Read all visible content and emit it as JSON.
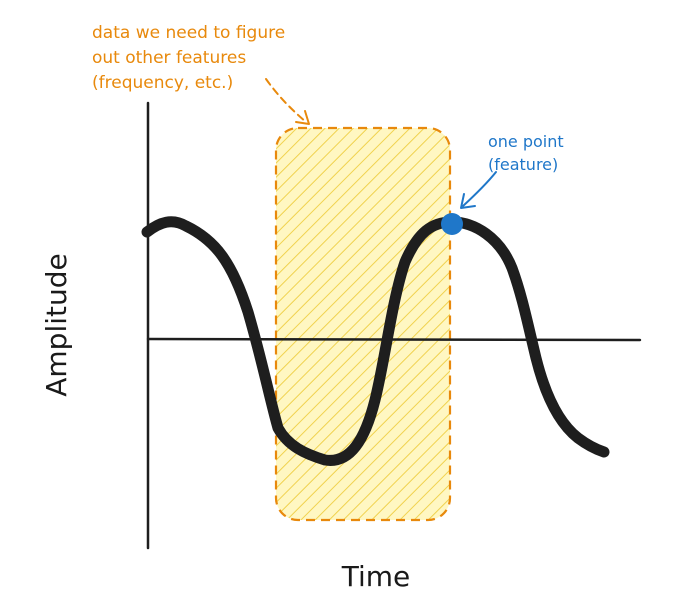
{
  "labels": {
    "window_note": [
      "data we need to figure",
      "out other features",
      "(frequency, etc.)"
    ],
    "point_note": [
      "one point",
      "(feature)"
    ],
    "x_axis": "Time",
    "y_axis": "Amplitude"
  },
  "colors": {
    "curve": "#1e1e1e",
    "axis": "#1e1e1e",
    "window_stroke": "#e8890c",
    "window_fill": "#fff7c2",
    "window_hatch": "#f2d85a",
    "point": "#1f77c9",
    "note_orange": "#e8890c",
    "note_blue": "#1f77c9"
  }
}
